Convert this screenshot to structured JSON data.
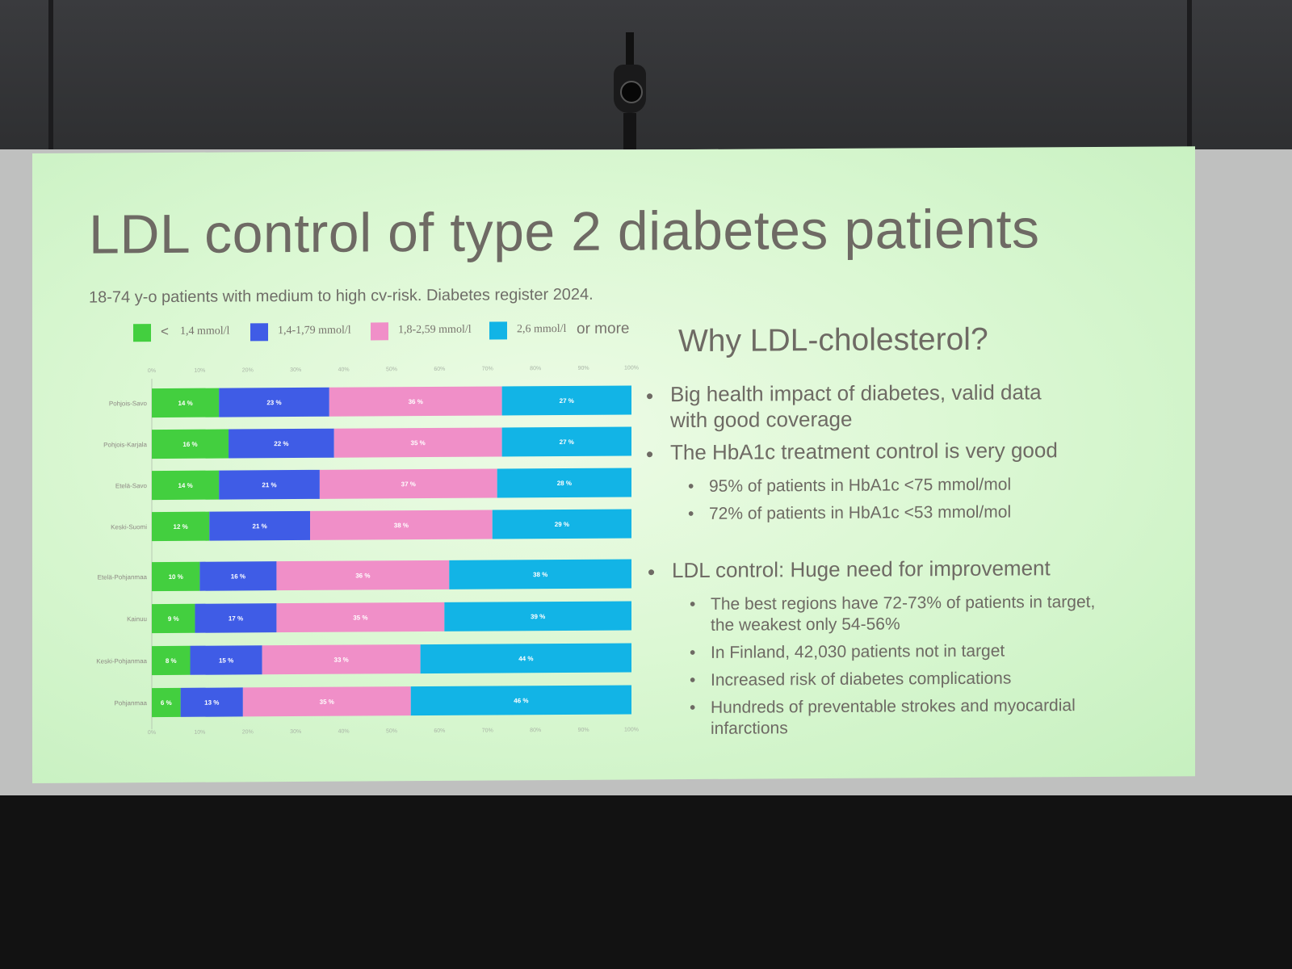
{
  "slide": {
    "title": "LDL control of type 2 diabetes patients",
    "subtitle": "18-74 y-o patients with medium to high cv-risk. Diabetes register 2024.",
    "right_heading": "Why LDL-cholesterol?",
    "bullets": [
      {
        "level": 1,
        "lines": [
          "Big health impact of diabetes, valid data",
          "with good coverage"
        ]
      },
      {
        "level": 1,
        "lines": [
          "The HbA1c treatment control is very good"
        ]
      },
      {
        "level": 2,
        "lines": [
          "95% of patients in HbA1c <75 mmol/mol"
        ]
      },
      {
        "level": 2,
        "lines": [
          "72% of patients in HbA1c <53 mmol/mol"
        ]
      },
      {
        "level": 1,
        "lines": [
          "LDL control: Huge need for improvement"
        ]
      },
      {
        "level": 2,
        "lines": [
          "The best regions have 72-73% of patients in target,",
          "the weakest only 54-56%"
        ]
      },
      {
        "level": 2,
        "lines": [
          "In Finland, 42,030 patients not in target"
        ]
      },
      {
        "level": 2,
        "lines": [
          "Increased risk of diabetes complications"
        ]
      },
      {
        "level": 2,
        "lines": [
          "Hundreds of preventable strokes and myocardial",
          "infarctions"
        ]
      }
    ],
    "bullet_glyph": "•"
  },
  "legend": [
    {
      "symbol": "<",
      "label": "1,4 mmol/l",
      "color": "#43cf3f"
    },
    {
      "symbol": "",
      "label": "1,4-1,79 mmol/l",
      "color": "#3f5ce6"
    },
    {
      "symbol": "",
      "label": "1,8-2,59 mmol/l",
      "color": "#f08fc8"
    },
    {
      "symbol": "",
      "label": "2,6 mmol/l",
      "suffix": "or more",
      "color": "#12b4e6"
    }
  ],
  "chart_data": {
    "type": "bar",
    "orientation": "horizontal",
    "stacked": true,
    "percent_axis": true,
    "xlim": [
      0,
      100
    ],
    "x_ticks": [
      "0%",
      "10%",
      "20%",
      "30%",
      "40%",
      "50%",
      "60%",
      "70%",
      "80%",
      "90%",
      "100%"
    ],
    "categories": [
      "Pohjois-Savo",
      "Pohjois-Karjala",
      "Etelä-Savo",
      "Keski-Suomi",
      "Etelä-Pohjanmaa",
      "Kainuu",
      "Keski-Pohjanmaa",
      "Pohjanmaa"
    ],
    "series": [
      {
        "name": "< 1,4 mmol/l",
        "color": "#43cf3f",
        "values": [
          14,
          16,
          14,
          12,
          10,
          9,
          8,
          6
        ],
        "labels": [
          "14 %",
          "16 %",
          "14 %",
          "12 %",
          "10 %",
          "9 %",
          "8 %",
          "6 %"
        ]
      },
      {
        "name": "1,4-1,79 mmol/l",
        "color": "#3f5ce6",
        "values": [
          23,
          22,
          21,
          21,
          16,
          17,
          15,
          13
        ],
        "labels": [
          "23 %",
          "22 %",
          "21 %",
          "21 %",
          "16 %",
          "17 %",
          "15 %",
          "13 %"
        ]
      },
      {
        "name": "1,8-2,59 mmol/l",
        "color": "#f08fc8",
        "values": [
          36,
          35,
          37,
          38,
          36,
          35,
          33,
          35
        ],
        "labels": [
          "36 %",
          "35 %",
          "37 %",
          "38 %",
          "36 %",
          "35 %",
          "33 %",
          "35 %"
        ]
      },
      {
        "name": "2,6 mmol/l or more",
        "color": "#12b4e6",
        "values": [
          27,
          27,
          28,
          29,
          38,
          39,
          44,
          46
        ],
        "labels": [
          "27 %",
          "27 %",
          "28 %",
          "29 %",
          "38 %",
          "39 %",
          "44 %",
          "46 %"
        ]
      }
    ]
  }
}
